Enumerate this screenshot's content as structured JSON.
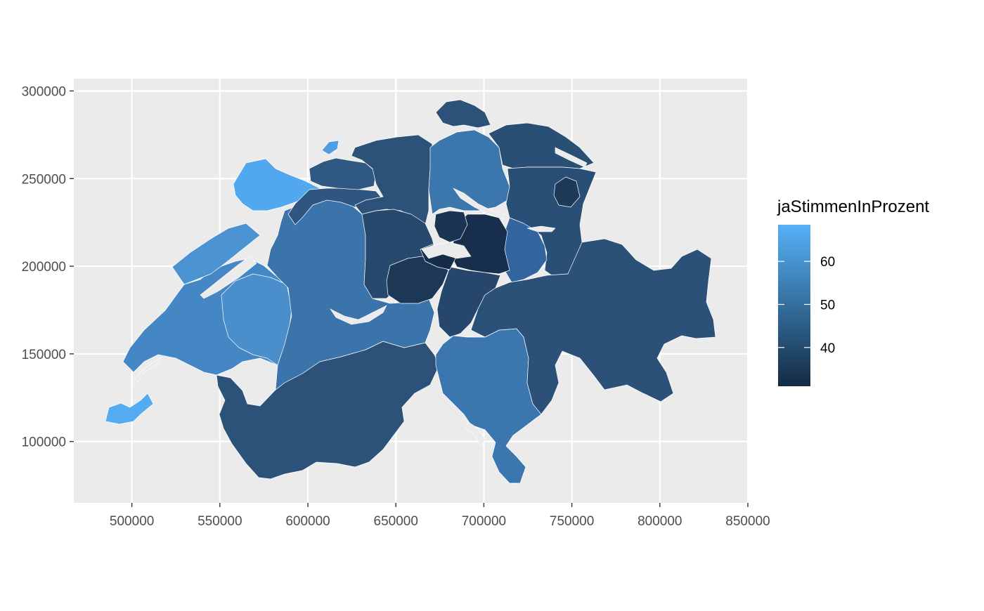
{
  "chart_data": {
    "type": "choropleth",
    "map_region": "Switzerland (cantons)",
    "x_ticks": [
      "500000",
      "550000",
      "600000",
      "650000",
      "700000",
      "750000",
      "800000",
      "850000"
    ],
    "y_ticks": [
      "100000",
      "150000",
      "200000",
      "250000",
      "300000"
    ],
    "x_tick_values": [
      500000,
      550000,
      600000,
      650000,
      700000,
      750000,
      800000,
      850000
    ],
    "y_tick_values": [
      100000,
      150000,
      200000,
      250000,
      300000
    ],
    "xlim": [
      467000,
      850000
    ],
    "ylim": [
      65000,
      307000
    ],
    "grid": true,
    "legend": {
      "title": "jaStimmenInProzent",
      "labels": [
        "60",
        "50",
        "40"
      ],
      "values": [
        60,
        50,
        40
      ],
      "range": [
        31,
        68.5
      ],
      "low_color": "#132B43",
      "high_color": "#56B1F7",
      "placement": "right"
    },
    "colors": {
      "panel_background": "#ebebeb",
      "gridline": "#ffffff",
      "border": "#ffffff",
      "tick_text": "#4d4d4d"
    }
  }
}
